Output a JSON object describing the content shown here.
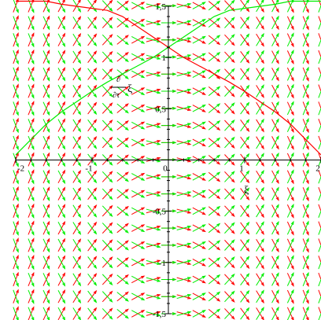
{
  "chart_data": {
    "type": "direction-field",
    "title": "",
    "xlabel": "ξ",
    "ylabel_numerator": "∂",
    "ylabel_denominator": "∂τ",
    "ylabel_var": "ξ",
    "xlim": [
      -2,
      2
    ],
    "ylim": [
      -1.5,
      1.5
    ],
    "x_ticks": [
      "-2",
      "-1",
      "0",
      "1",
      "2"
    ],
    "y_ticks": [
      "-1,5",
      "-1",
      "-0,5",
      "0,5",
      "1",
      "1,5"
    ],
    "x_tick_values": [
      -2,
      -1,
      0,
      1,
      2
    ],
    "y_tick_values": [
      -1.5,
      -1,
      -0.5,
      0.5,
      1,
      1.5
    ],
    "grid": false,
    "arrow_spacing_x": 0.2,
    "arrow_spacing_y": 0.167,
    "fields": [
      {
        "color": "#ff0000",
        "description": "vectors (1, -x)"
      },
      {
        "color": "#00ee00",
        "description": "vectors (1, x)"
      }
    ],
    "series": [
      {
        "color": "#ff0000",
        "x": [
          -2.0,
          -1.8,
          -1.6,
          -1.4,
          -1.2,
          -1.0,
          -0.8,
          -0.6,
          -0.4,
          -0.2,
          0.0,
          0.2,
          0.4,
          0.6,
          0.8,
          1.0,
          1.2,
          1.4,
          1.6,
          1.8,
          2.0
        ],
        "y": [
          1.55,
          1.55,
          1.55,
          1.52,
          1.5,
          1.48,
          1.46,
          1.4,
          1.3,
          1.2,
          1.1,
          1.0,
          0.92,
          0.84,
          0.76,
          0.67,
          0.57,
          0.47,
          0.35,
          0.2,
          0.05
        ]
      },
      {
        "color": "#00ee00",
        "x": [
          -2.0,
          -1.8,
          -1.6,
          -1.4,
          -1.2,
          -1.0,
          -0.8,
          -0.6,
          -0.4,
          -0.2,
          0.0,
          0.2,
          0.4,
          0.6,
          0.8,
          1.0,
          1.2,
          1.4,
          1.6,
          1.8,
          2.0
        ],
        "y": [
          0.05,
          0.2,
          0.35,
          0.47,
          0.57,
          0.67,
          0.76,
          0.84,
          0.92,
          1.0,
          1.1,
          1.2,
          1.3,
          1.4,
          1.46,
          1.48,
          1.5,
          1.52,
          1.55,
          1.55,
          1.55
        ]
      }
    ]
  }
}
